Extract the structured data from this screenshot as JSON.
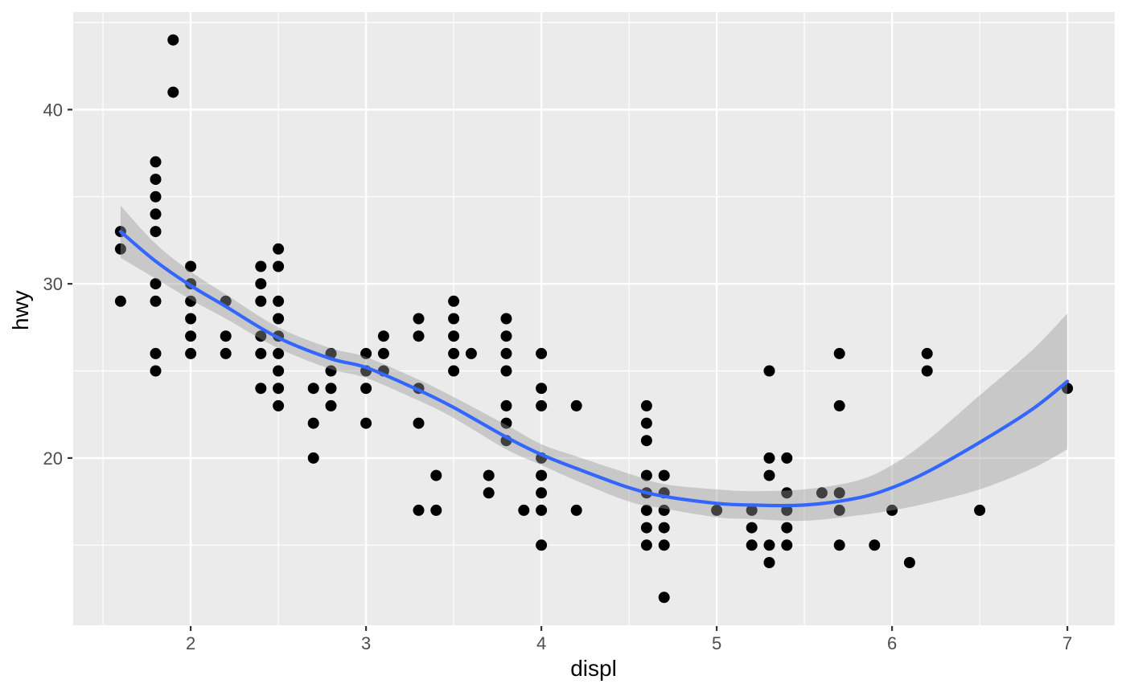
{
  "chart_data": {
    "type": "scatter",
    "title": "",
    "xlabel": "displ",
    "ylabel": "hwy",
    "xlim": [
      1.33,
      7.27
    ],
    "ylim": [
      10.4,
      45.6
    ],
    "x_ticks": [
      2,
      3,
      4,
      5,
      6,
      7
    ],
    "y_ticks": [
      20,
      30,
      40
    ],
    "x_minor_gridlines": [
      1.5,
      2.5,
      3.5,
      4.5,
      5.5,
      6.5
    ],
    "y_minor_gridlines": [
      15,
      25,
      35,
      45
    ],
    "grid": "on",
    "legend": "none",
    "theme": "ggplot2-grey",
    "points": [
      [
        1.6,
        29
      ],
      [
        1.6,
        32
      ],
      [
        1.6,
        33
      ],
      [
        1.8,
        25
      ],
      [
        1.8,
        26
      ],
      [
        1.8,
        29
      ],
      [
        1.8,
        30
      ],
      [
        1.8,
        33
      ],
      [
        1.8,
        34
      ],
      [
        1.8,
        35
      ],
      [
        1.8,
        36
      ],
      [
        1.8,
        37
      ],
      [
        1.9,
        41
      ],
      [
        1.9,
        44
      ],
      [
        2.0,
        26
      ],
      [
        2.0,
        27
      ],
      [
        2.0,
        28
      ],
      [
        2.0,
        29
      ],
      [
        2.0,
        30
      ],
      [
        2.0,
        31
      ],
      [
        2.2,
        26
      ],
      [
        2.2,
        27
      ],
      [
        2.2,
        29
      ],
      [
        2.4,
        24
      ],
      [
        2.4,
        26
      ],
      [
        2.4,
        27
      ],
      [
        2.4,
        29
      ],
      [
        2.4,
        30
      ],
      [
        2.4,
        31
      ],
      [
        2.5,
        23
      ],
      [
        2.5,
        24
      ],
      [
        2.5,
        25
      ],
      [
        2.5,
        26
      ],
      [
        2.5,
        27
      ],
      [
        2.5,
        28
      ],
      [
        2.5,
        29
      ],
      [
        2.5,
        31
      ],
      [
        2.5,
        32
      ],
      [
        2.7,
        20
      ],
      [
        2.7,
        22
      ],
      [
        2.7,
        24
      ],
      [
        2.8,
        23
      ],
      [
        2.8,
        24
      ],
      [
        2.8,
        25
      ],
      [
        2.8,
        26
      ],
      [
        3.0,
        22
      ],
      [
        3.0,
        24
      ],
      [
        3.0,
        25
      ],
      [
        3.0,
        26
      ],
      [
        3.1,
        25
      ],
      [
        3.1,
        26
      ],
      [
        3.1,
        27
      ],
      [
        3.3,
        17
      ],
      [
        3.3,
        22
      ],
      [
        3.3,
        24
      ],
      [
        3.3,
        27
      ],
      [
        3.3,
        28
      ],
      [
        3.4,
        17
      ],
      [
        3.4,
        19
      ],
      [
        3.5,
        25
      ],
      [
        3.5,
        26
      ],
      [
        3.5,
        27
      ],
      [
        3.5,
        28
      ],
      [
        3.5,
        29
      ],
      [
        3.6,
        26
      ],
      [
        3.7,
        18
      ],
      [
        3.7,
        19
      ],
      [
        3.8,
        21
      ],
      [
        3.8,
        22
      ],
      [
        3.8,
        23
      ],
      [
        3.8,
        25
      ],
      [
        3.8,
        26
      ],
      [
        3.8,
        27
      ],
      [
        3.8,
        28
      ],
      [
        3.9,
        17
      ],
      [
        4.0,
        15
      ],
      [
        4.0,
        17
      ],
      [
        4.0,
        18
      ],
      [
        4.0,
        19
      ],
      [
        4.0,
        20
      ],
      [
        4.0,
        23
      ],
      [
        4.0,
        24
      ],
      [
        4.0,
        26
      ],
      [
        4.2,
        17
      ],
      [
        4.2,
        23
      ],
      [
        4.6,
        15
      ],
      [
        4.6,
        16
      ],
      [
        4.6,
        17
      ],
      [
        4.6,
        18
      ],
      [
        4.6,
        19
      ],
      [
        4.6,
        21
      ],
      [
        4.6,
        22
      ],
      [
        4.6,
        23
      ],
      [
        4.7,
        12
      ],
      [
        4.7,
        15
      ],
      [
        4.7,
        16
      ],
      [
        4.7,
        17
      ],
      [
        4.7,
        18
      ],
      [
        4.7,
        19
      ],
      [
        5.0,
        17
      ],
      [
        5.2,
        15
      ],
      [
        5.2,
        16
      ],
      [
        5.2,
        17
      ],
      [
        5.3,
        14
      ],
      [
        5.3,
        15
      ],
      [
        5.3,
        19
      ],
      [
        5.3,
        20
      ],
      [
        5.3,
        25
      ],
      [
        5.4,
        15
      ],
      [
        5.4,
        16
      ],
      [
        5.4,
        17
      ],
      [
        5.4,
        18
      ],
      [
        5.4,
        20
      ],
      [
        5.6,
        18
      ],
      [
        5.7,
        15
      ],
      [
        5.7,
        17
      ],
      [
        5.7,
        18
      ],
      [
        5.7,
        23
      ],
      [
        5.7,
        26
      ],
      [
        5.9,
        15
      ],
      [
        6.0,
        17
      ],
      [
        6.1,
        14
      ],
      [
        6.2,
        25
      ],
      [
        6.2,
        26
      ],
      [
        6.5,
        17
      ],
      [
        7.0,
        24
      ]
    ],
    "smooth_line": {
      "name": "loess-fit",
      "x": [
        1.6,
        1.8,
        2.0,
        2.2,
        2.5,
        2.8,
        3.0,
        3.3,
        3.5,
        3.8,
        4.0,
        4.2,
        4.5,
        4.7,
        5.0,
        5.2,
        5.5,
        5.8,
        6.0,
        6.2,
        6.5,
        6.8,
        7.0
      ],
      "y": [
        33.0,
        31.3,
        29.9,
        28.7,
        26.9,
        25.7,
        25.2,
        23.9,
        22.9,
        21.2,
        20.2,
        19.4,
        18.3,
        17.8,
        17.4,
        17.3,
        17.3,
        17.7,
        18.3,
        19.2,
        20.9,
        22.8,
        24.4
      ]
    },
    "ribbon": {
      "name": "confidence-band",
      "x": [
        1.6,
        1.8,
        2.0,
        2.2,
        2.5,
        2.8,
        3.0,
        3.3,
        3.5,
        3.8,
        4.0,
        4.2,
        4.5,
        4.7,
        5.0,
        5.2,
        5.5,
        5.8,
        6.0,
        6.2,
        6.5,
        6.8,
        7.0
      ],
      "lower": [
        31.5,
        30.3,
        29.1,
        28.0,
        26.3,
        25.1,
        24.6,
        23.3,
        22.3,
        20.5,
        19.6,
        18.7,
        17.5,
        17.1,
        16.6,
        16.5,
        16.4,
        16.7,
        17.0,
        17.4,
        18.2,
        19.4,
        20.5
      ],
      "upper": [
        34.5,
        32.3,
        30.7,
        29.4,
        27.5,
        26.3,
        25.8,
        24.5,
        23.5,
        21.9,
        20.8,
        20.1,
        19.1,
        18.5,
        18.2,
        18.1,
        18.2,
        18.7,
        19.6,
        21.0,
        23.6,
        26.2,
        28.3
      ]
    },
    "colors": {
      "background": "#FFFFFF",
      "panel_background": "#EBEBEB",
      "gridline": "#FFFFFF",
      "point": "#000000",
      "smooth_line": "#3366FF",
      "ribbon_fill": "#999999",
      "ribbon_opacity": 0.42,
      "axis_text": "#4D4D4D",
      "tick_mark": "#333333",
      "axis_title": "#000000"
    }
  }
}
